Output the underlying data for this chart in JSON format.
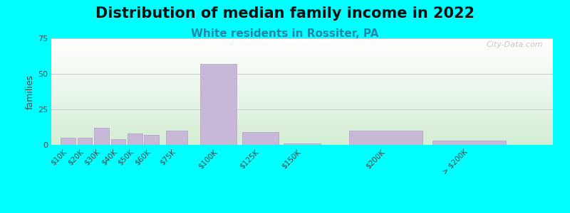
{
  "title": "Distribution of median family income in 2022",
  "subtitle": "White residents in Rossiter, PA",
  "ylabel": "families",
  "background_color": "#00FFFF",
  "plot_bg_top": "#ffffff",
  "plot_bg_bottom": "#d4ecd4",
  "bar_color": "#c8b8d8",
  "bar_edge_color": "#b0a0c8",
  "categories": [
    "$10K",
    "$20K",
    "$30K",
    "$40K",
    "$50K",
    "$60K",
    "$75K",
    "$100K",
    "$125K",
    "$150K",
    "$200K",
    "> $200K"
  ],
  "x_positions": [
    10,
    20,
    30,
    40,
    50,
    60,
    75,
    100,
    125,
    150,
    200,
    250
  ],
  "x_widths": [
    10,
    10,
    10,
    10,
    10,
    10,
    15,
    25,
    25,
    25,
    50,
    50
  ],
  "values": [
    5,
    5,
    12,
    4,
    8,
    7,
    10,
    57,
    9,
    1,
    10,
    3
  ],
  "ylim": [
    0,
    75
  ],
  "xlim": [
    0,
    300
  ],
  "yticks": [
    0,
    25,
    50,
    75
  ],
  "title_fontsize": 15,
  "subtitle_fontsize": 11,
  "subtitle_color": "#2288aa",
  "watermark": "City-Data.com",
  "grid_color": "#cccccc",
  "tick_label_fontsize": 7.5,
  "ylabel_fontsize": 9
}
